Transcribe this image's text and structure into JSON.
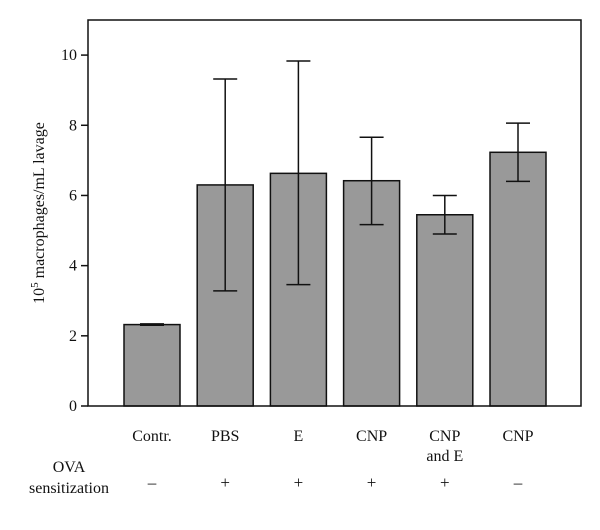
{
  "chart_data": {
    "type": "bar",
    "categories": [
      "Contr.",
      "PBS",
      "E",
      "CNP",
      "CNP and E",
      "CNP"
    ],
    "category_label_lines": [
      [
        "Contr."
      ],
      [
        "PBS"
      ],
      [
        "E"
      ],
      [
        "CNP"
      ],
      [
        "CNP",
        "and E"
      ],
      [
        "CNP"
      ]
    ],
    "values": [
      2.32,
      6.3,
      6.63,
      6.42,
      5.45,
      7.23
    ],
    "error_upper": [
      2.34,
      9.32,
      9.83,
      7.66,
      6.0,
      8.06
    ],
    "error_lower": [
      2.3,
      3.28,
      3.46,
      5.17,
      4.9,
      6.4
    ],
    "ylabel": {
      "prefix": "10",
      "superscript": "5",
      "suffix": " macrophages/mL lavage"
    },
    "ylim": [
      0,
      11
    ],
    "yticks": [
      0,
      2,
      4,
      6,
      8,
      10
    ],
    "bar_color": "#999999",
    "grid": false,
    "condition_row": {
      "label_lines": [
        "OVA",
        "sensitization"
      ],
      "values": [
        "–",
        "+",
        "+",
        "+",
        "+",
        "–"
      ]
    }
  }
}
